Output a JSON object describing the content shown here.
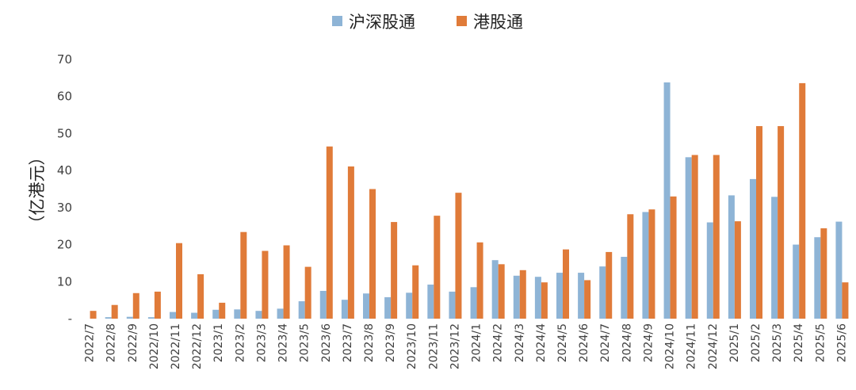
{
  "chart_data": {
    "type": "bar",
    "title": "",
    "xlabel": "",
    "ylabel": "（亿港元）",
    "ylim": [
      0,
      70
    ],
    "yticks": [
      0,
      10,
      20,
      30,
      40,
      50,
      60,
      70
    ],
    "ytick_labels": [
      "-",
      "10",
      "20",
      "30",
      "40",
      "50",
      "60",
      "70"
    ],
    "grid": false,
    "legend_position": "top-center",
    "categories": [
      "2022/7",
      "2022/8",
      "2022/9",
      "2022/10",
      "2022/11",
      "2022/12",
      "2023/1",
      "2023/2",
      "2023/3",
      "2023/4",
      "2023/5",
      "2023/6",
      "2023/7",
      "2023/8",
      "2023/9",
      "2023/10",
      "2023/11",
      "2023/12",
      "2024/1",
      "2024/2",
      "2024/3",
      "2024/4",
      "2024/5",
      "2024/6",
      "2024/7",
      "2024/8",
      "2024/9",
      "2024/10",
      "2024/11",
      "2024/12",
      "2025/1",
      "2025/2",
      "2025/3",
      "2025/4",
      "2025/5",
      "2025/6"
    ],
    "series": [
      {
        "name": "沪深股通",
        "color": "#8EB4D6",
        "values": [
          0,
          0.4,
          0.5,
          0.4,
          1.8,
          1.6,
          2.4,
          2.5,
          2.1,
          2.7,
          4.7,
          7.5,
          5.1,
          6.8,
          5.8,
          7.0,
          9.2,
          7.3,
          8.5,
          15.8,
          11.6,
          11.3,
          12.4,
          12.4,
          14.1,
          16.7,
          28.8,
          63.8,
          43.6,
          26.0,
          33.3,
          37.7,
          32.9,
          20.0,
          22.0,
          26.2
        ]
      },
      {
        "name": "港股通",
        "color": "#E07B39",
        "values": [
          2.1,
          3.7,
          6.9,
          7.3,
          20.4,
          12.0,
          4.3,
          23.4,
          18.3,
          19.8,
          14.0,
          46.5,
          41.1,
          35.0,
          26.1,
          14.4,
          27.8,
          34.0,
          20.6,
          14.7,
          13.1,
          9.8,
          18.7,
          10.4,
          18.0,
          28.2,
          29.5,
          33.0,
          44.2,
          44.2,
          26.3,
          52.0,
          52.0,
          63.6,
          24.4,
          9.8
        ]
      }
    ]
  }
}
